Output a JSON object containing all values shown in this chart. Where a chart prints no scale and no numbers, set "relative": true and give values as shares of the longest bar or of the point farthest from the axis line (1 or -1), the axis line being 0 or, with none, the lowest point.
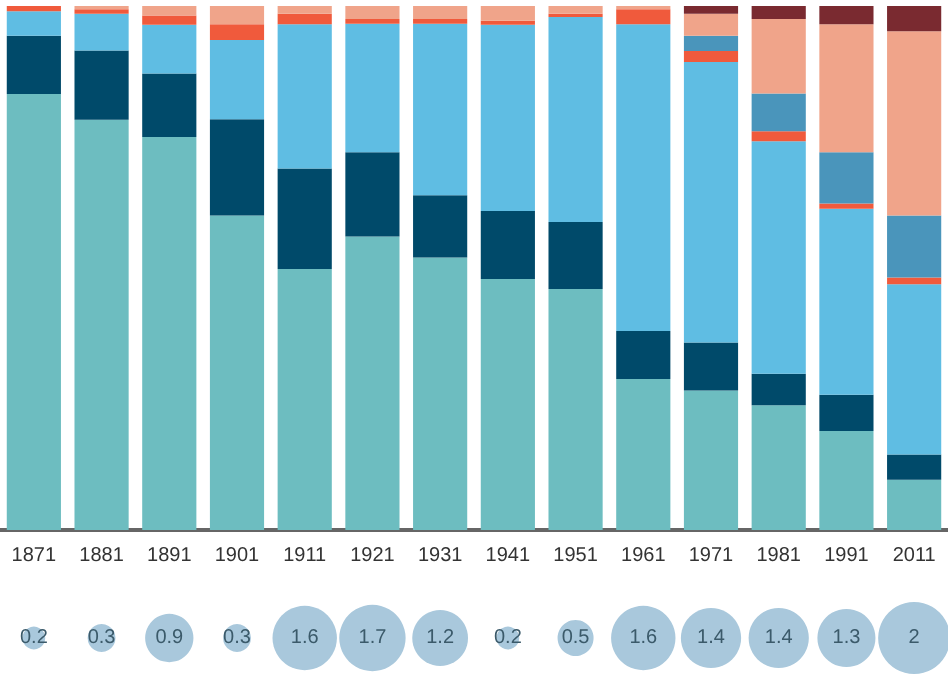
{
  "chart_data": [
    {
      "type": "bar",
      "stacked": true,
      "relative": true,
      "categories": [
        "1871",
        "1881",
        "1891",
        "1901",
        "1911",
        "1921",
        "1931",
        "1941",
        "1951",
        "1961",
        "1971",
        "1981",
        "1991",
        "2011"
      ],
      "series": [
        {
          "color": "#6dbdc0",
          "values": [
            0.832,
            0.783,
            0.75,
            0.6,
            0.498,
            0.56,
            0.52,
            0.479,
            0.46,
            0.288,
            0.266,
            0.238,
            0.189,
            0.096
          ]
        },
        {
          "color": "#004a6a",
          "values": [
            0.111,
            0.132,
            0.121,
            0.184,
            0.192,
            0.161,
            0.119,
            0.13,
            0.128,
            0.092,
            0.092,
            0.06,
            0.069,
            0.048
          ]
        },
        {
          "color": "#5fbde3",
          "values": [
            0.047,
            0.07,
            0.093,
            0.151,
            0.275,
            0.245,
            0.327,
            0.355,
            0.391,
            0.585,
            0.535,
            0.444,
            0.355,
            0.325
          ]
        },
        {
          "color": "#f05a3c",
          "values": [
            0.01,
            0.009,
            0.018,
            0.03,
            0.02,
            0.009,
            0.009,
            0.008,
            0.006,
            0.029,
            0.021,
            0.019,
            0.01,
            0.013
          ]
        },
        {
          "color": "#4a95bb",
          "values": [
            0,
            0,
            0,
            0,
            0,
            0,
            0,
            0,
            0,
            0,
            0.029,
            0.072,
            0.098,
            0.118
          ]
        },
        {
          "color": "#f0a48a",
          "values": [
            0,
            0.006,
            0.018,
            0.035,
            0.015,
            0.025,
            0.025,
            0.028,
            0.015,
            0.006,
            0.042,
            0.142,
            0.244,
            0.352
          ]
        },
        {
          "color": "#7a2a30",
          "values": [
            0,
            0,
            0,
            0,
            0,
            0,
            0,
            0,
            0,
            0,
            0.015,
            0.025,
            0.035,
            0.048
          ]
        }
      ]
    },
    {
      "type": "other",
      "data_labels": true,
      "color": "#a9c8dc",
      "categories": [
        null,
        null,
        null,
        null,
        null,
        null,
        null,
        null,
        null,
        null,
        null,
        null,
        null,
        null
      ],
      "values": [
        0.2,
        0.3,
        0.9,
        0.3,
        1.6,
        1.7,
        1.2,
        0.2,
        0.5,
        1.6,
        1.4,
        1.4,
        1.3,
        2
      ]
    }
  ]
}
